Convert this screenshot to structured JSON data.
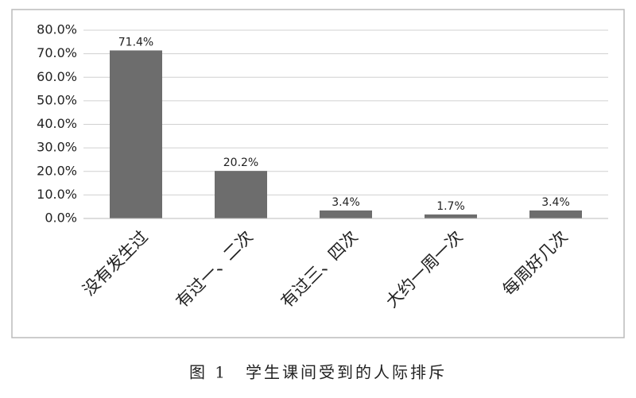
{
  "chart_data": {
    "type": "bar",
    "title": "图 1　学生课间受到的人际排斥",
    "categories": [
      "没有发生过",
      "有过一、二次",
      "有过三、四次",
      "大约一周一次",
      "每周好几次"
    ],
    "values": [
      71.4,
      20.2,
      3.4,
      1.7,
      3.4
    ],
    "value_labels": [
      "71.4%",
      "20.2%",
      "3.4%",
      "1.7%",
      "3.4%"
    ],
    "color": "#6d6d6d",
    "ylim": [
      0,
      80
    ],
    "yticks": [
      {
        "value": 0,
        "label": "0.0%"
      },
      {
        "value": 10,
        "label": "10.0%"
      },
      {
        "value": 20,
        "label": "20.0%"
      },
      {
        "value": 30,
        "label": "30.0%"
      },
      {
        "value": 40,
        "label": "40.0%"
      },
      {
        "value": 50,
        "label": "50.0%"
      },
      {
        "value": 60,
        "label": "60.0%"
      },
      {
        "value": 70,
        "label": "70.0%"
      },
      {
        "value": 80,
        "label": "80.0%"
      }
    ],
    "grid": true
  }
}
